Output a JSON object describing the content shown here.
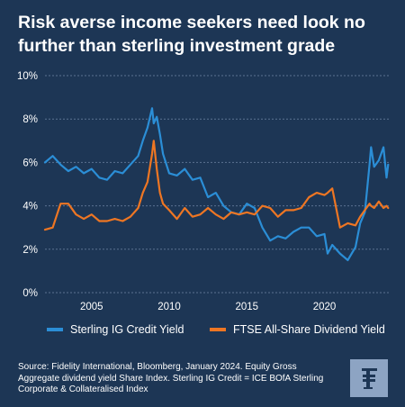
{
  "header": {
    "title_line1": "Risk averse income seekers need look no",
    "title_line2": "further than sterling investment grade"
  },
  "footer": {
    "source_line1": "Source: Fidelity International, Bloomberg, January 2024. Equity Gross",
    "source_line2": "Aggregate dividend yield Share Index. Sterling IG Credit = ICE BOfA Sterling",
    "source_line3": "Corporate & Collateralised Index",
    "logo_icon": "fidelity-f-logo-icon"
  },
  "colors": {
    "background": "#1d3655",
    "grid": "#5c7291",
    "series_blue": "#2b8ed6",
    "series_orange": "#ee7623",
    "logo_bg": "#8da4c3"
  },
  "chart_data": {
    "type": "line",
    "ylim": [
      0,
      10
    ],
    "xlim": [
      2002.0,
      2024.2
    ],
    "yticks": [
      "0%",
      "2%",
      "4%",
      "6%",
      "8%",
      "10%"
    ],
    "xticks": [
      "2005",
      "2010",
      "2015",
      "2020"
    ],
    "grid": true,
    "legend_position": "bottom",
    "x": [
      2002.0,
      2002.5,
      2003.0,
      2003.5,
      2004.0,
      2004.5,
      2005.0,
      2005.5,
      2006.0,
      2006.5,
      2007.0,
      2007.5,
      2008.0,
      2008.3,
      2008.6,
      2008.9,
      2009.0,
      2009.2,
      2009.4,
      2009.6,
      2010.0,
      2010.5,
      2011.0,
      2011.5,
      2012.0,
      2012.5,
      2013.0,
      2013.5,
      2014.0,
      2014.5,
      2015.0,
      2015.5,
      2016.0,
      2016.5,
      2017.0,
      2017.5,
      2018.0,
      2018.5,
      2019.0,
      2019.5,
      2020.0,
      2020.2,
      2020.5,
      2021.0,
      2021.5,
      2022.0,
      2022.3,
      2022.6,
      2022.9,
      2023.0,
      2023.2,
      2023.5,
      2023.8,
      2024.0,
      2024.1
    ],
    "series": [
      {
        "name": "Sterling IG Credit Yield",
        "color": "#2b8ed6",
        "values": [
          6.0,
          6.3,
          5.9,
          5.6,
          5.8,
          5.5,
          5.7,
          5.3,
          5.2,
          5.6,
          5.5,
          5.9,
          6.3,
          7.0,
          7.6,
          8.5,
          7.8,
          8.1,
          7.3,
          6.4,
          5.5,
          5.4,
          5.7,
          5.2,
          5.3,
          4.4,
          4.6,
          4.0,
          3.7,
          3.6,
          4.1,
          3.9,
          3.0,
          2.4,
          2.6,
          2.5,
          2.8,
          3.0,
          3.0,
          2.6,
          2.7,
          1.8,
          2.2,
          1.8,
          1.5,
          2.1,
          3.2,
          3.7,
          5.9,
          6.7,
          5.8,
          6.1,
          6.7,
          5.3,
          5.9
        ]
      },
      {
        "name": "FTSE All-Share Dividend Yield",
        "color": "#ee7623",
        "values": [
          2.9,
          3.0,
          4.1,
          4.1,
          3.6,
          3.4,
          3.6,
          3.3,
          3.3,
          3.4,
          3.3,
          3.5,
          3.9,
          4.6,
          5.1,
          6.4,
          7.0,
          5.7,
          4.6,
          4.1,
          3.8,
          3.4,
          3.9,
          3.5,
          3.6,
          3.9,
          3.6,
          3.4,
          3.7,
          3.6,
          3.7,
          3.6,
          4.0,
          3.9,
          3.5,
          3.8,
          3.8,
          3.9,
          4.4,
          4.6,
          4.5,
          4.6,
          4.8,
          3.0,
          3.2,
          3.1,
          3.5,
          3.8,
          4.1,
          4.0,
          3.9,
          4.2,
          3.9,
          4.0,
          3.9
        ]
      }
    ]
  }
}
